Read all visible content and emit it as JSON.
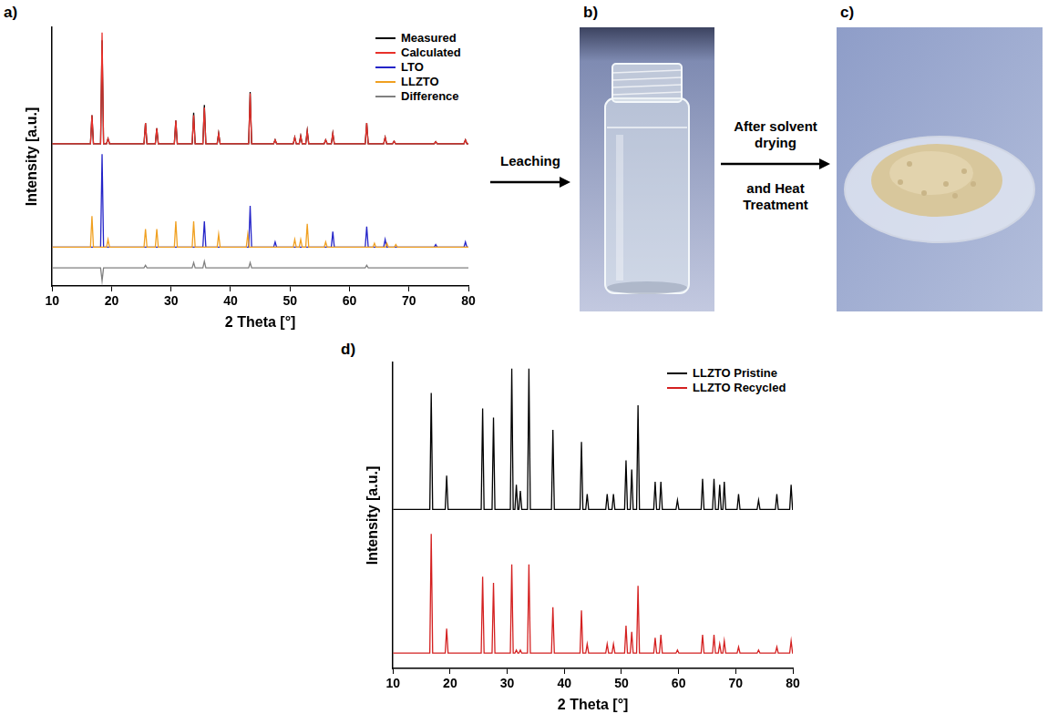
{
  "chart_data": [
    {
      "type": "line",
      "panel_label": "a)",
      "x_label": "2 Theta [°]",
      "y_label": "Intensity [a.u.]",
      "xlim": [
        10,
        80
      ],
      "xticks": [
        10,
        20,
        30,
        40,
        50,
        60,
        70,
        80
      ],
      "ylim": [
        0,
        100
      ],
      "tick_labels": "x",
      "grid": false,
      "legend": "upper right",
      "series": [
        {
          "name": "Measured",
          "color": "#000000",
          "x": [
            10,
            16.45,
            16.7,
            16.95,
            18.15,
            18.4,
            18.65,
            19.15,
            19.4,
            19.65,
            25.45,
            25.7,
            25.95,
            27.35,
            27.6,
            27.85,
            30.55,
            30.8,
            31.05,
            33.55,
            33.8,
            34.05,
            35.35,
            35.6,
            35.85,
            37.75,
            38.0,
            38.25,
            43.05,
            43.3,
            43.55,
            47.25,
            47.5,
            47.75,
            50.55,
            50.8,
            51.05,
            51.55,
            51.8,
            52.05,
            52.65,
            52.9,
            53.15,
            55.75,
            56.0,
            56.25,
            56.95,
            57.2,
            57.45,
            62.65,
            62.9,
            63.15,
            65.75,
            66.0,
            66.25,
            67.25,
            67.5,
            67.75,
            74.25,
            74.5,
            74.75,
            79.25,
            79.5,
            79.75,
            80
          ],
          "values": [
            55,
            55,
            66,
            55,
            55,
            95,
            55,
            55,
            57,
            55,
            55,
            63,
            55,
            55,
            61,
            55,
            55,
            64,
            55,
            55,
            67,
            55,
            55,
            70,
            55,
            55,
            59,
            55,
            55,
            75,
            55,
            55,
            56.5,
            55,
            55,
            57.5,
            55,
            55,
            58,
            55,
            55,
            60,
            55,
            55,
            56.5,
            55,
            55,
            59,
            55,
            55,
            63,
            55,
            55,
            57.5,
            55,
            55,
            56,
            55,
            55,
            55.8,
            55,
            55,
            56.5,
            55,
            55
          ]
        },
        {
          "name": "Calculated",
          "color": "#e8302a",
          "x": [
            10,
            16.45,
            16.7,
            16.95,
            18.15,
            18.4,
            18.65,
            19.15,
            19.4,
            19.65,
            25.45,
            25.7,
            25.95,
            27.35,
            27.6,
            27.85,
            30.55,
            30.8,
            31.05,
            33.55,
            33.8,
            34.05,
            35.35,
            35.6,
            35.85,
            37.75,
            38.0,
            38.25,
            43.05,
            43.3,
            43.55,
            47.25,
            47.5,
            47.75,
            50.55,
            50.8,
            51.05,
            51.55,
            51.8,
            52.05,
            52.65,
            52.9,
            53.15,
            55.75,
            56.0,
            56.25,
            56.95,
            57.2,
            57.45,
            62.65,
            62.9,
            63.15,
            65.75,
            66.0,
            66.25,
            67.25,
            67.5,
            67.75,
            74.25,
            74.5,
            74.75,
            79.25,
            79.5,
            79.75,
            80
          ],
          "values": [
            55,
            55,
            66,
            55,
            55,
            98,
            55,
            55,
            57,
            55,
            55,
            63,
            55,
            55,
            61,
            55,
            55,
            64,
            55,
            55,
            66,
            55,
            55,
            69,
            55,
            55,
            59,
            55,
            55,
            74.5,
            55,
            55,
            56.5,
            55,
            55,
            57.5,
            55,
            55,
            58,
            55,
            55,
            60,
            55,
            55,
            56.5,
            55,
            55,
            59,
            55,
            55,
            63,
            55,
            55,
            57.5,
            55,
            55,
            56,
            55,
            55,
            55.8,
            55,
            55,
            56.5,
            55,
            55
          ]
        },
        {
          "name": "LTO",
          "color": "#2424c8",
          "x": [
            10,
            18.15,
            18.4,
            18.65,
            35.35,
            35.6,
            35.85,
            43.05,
            43.3,
            43.55,
            47.25,
            47.5,
            47.75,
            56.95,
            57.2,
            57.45,
            62.65,
            62.9,
            63.15,
            65.75,
            66.0,
            66.25,
            74.25,
            74.5,
            74.75,
            79.25,
            79.5,
            79.75,
            80
          ],
          "values": [
            15,
            15,
            51,
            15,
            15,
            25,
            15,
            15,
            31,
            15,
            15,
            17,
            15,
            15,
            21,
            15,
            15,
            23,
            15,
            15,
            18,
            15,
            15,
            16,
            15,
            15,
            17,
            15,
            15
          ]
        },
        {
          "name": "LLZTO",
          "color": "#f0a020",
          "x": [
            10,
            16.45,
            16.7,
            16.95,
            19.15,
            19.4,
            19.65,
            25.45,
            25.7,
            25.95,
            27.35,
            27.6,
            27.85,
            30.55,
            30.8,
            31.05,
            33.55,
            33.8,
            34.05,
            37.75,
            38.0,
            38.25,
            42.65,
            42.9,
            43.15,
            50.55,
            50.8,
            51.05,
            51.55,
            51.8,
            52.05,
            52.65,
            52.9,
            53.15,
            55.75,
            56.0,
            56.25,
            63.95,
            64.2,
            64.45,
            66.05,
            66.3,
            66.55,
            67.55,
            67.8,
            68.05,
            80
          ],
          "values": [
            15,
            15,
            27,
            15,
            15,
            18,
            15,
            15,
            22,
            15,
            15,
            22,
            15,
            15,
            25,
            15,
            15,
            25,
            15,
            15,
            20,
            15,
            15,
            20,
            15,
            15,
            18,
            15,
            15,
            18,
            15,
            15,
            24,
            15,
            15,
            17,
            15,
            15,
            16.5,
            15,
            15,
            16.5,
            15,
            15,
            16,
            15,
            15
          ]
        },
        {
          "name": "Difference",
          "color": "#808080",
          "x": [
            10,
            18.15,
            18.4,
            18.65,
            25.45,
            25.7,
            25.95,
            33.55,
            33.8,
            34.05,
            35.35,
            35.6,
            35.85,
            43.05,
            43.3,
            43.55,
            62.65,
            62.9,
            63.15,
            80
          ],
          "values": [
            7,
            7,
            2,
            7,
            7,
            8,
            7,
            7,
            9,
            7,
            7,
            9.5,
            7,
            7,
            9,
            7,
            7,
            8,
            7,
            7
          ]
        }
      ]
    },
    {
      "type": "line",
      "panel_label": "d)",
      "x_label": "2 Theta [°]",
      "y_label": "Intensity [a.u.]",
      "xlim": [
        10,
        80
      ],
      "xticks": [
        10,
        20,
        30,
        40,
        50,
        60,
        70,
        80
      ],
      "ylim": [
        0,
        100
      ],
      "tick_labels": "x",
      "grid": false,
      "legend": "upper right",
      "series": [
        {
          "name": "LLZTO Pristine",
          "color": "#000000",
          "x": [
            10,
            16.45,
            16.7,
            16.95,
            19.15,
            19.4,
            19.65,
            25.45,
            25.7,
            25.95,
            27.35,
            27.6,
            27.85,
            30.55,
            30.8,
            31.05,
            31.35,
            31.6,
            31.85,
            32.05,
            32.3,
            32.55,
            33.55,
            33.8,
            34.05,
            37.75,
            38.0,
            38.25,
            42.75,
            43.0,
            43.25,
            43.75,
            44.0,
            44.25,
            47.25,
            47.5,
            47.75,
            48.35,
            48.6,
            48.85,
            50.55,
            50.8,
            51.05,
            51.55,
            51.8,
            52.05,
            52.65,
            52.9,
            53.15,
            55.65,
            55.9,
            56.15,
            56.65,
            56.9,
            57.15,
            59.55,
            59.8,
            60.05,
            63.95,
            64.2,
            64.45,
            65.95,
            66.2,
            66.45,
            66.95,
            67.2,
            67.45,
            67.75,
            68.0,
            68.25,
            70.25,
            70.5,
            70.75,
            73.75,
            74.0,
            74.25,
            76.95,
            77.2,
            77.45,
            79.45,
            79.7,
            79.95,
            80
          ],
          "values": [
            52,
            52,
            90,
            52,
            52,
            63,
            52,
            52,
            85,
            52,
            52,
            82,
            52,
            52,
            98,
            52,
            52,
            60,
            52,
            52,
            58,
            52,
            52,
            98,
            52,
            52,
            78,
            52,
            52,
            74,
            52,
            52,
            57,
            52,
            52,
            57,
            52,
            52,
            57,
            52,
            52,
            68,
            52,
            52,
            65,
            52,
            52,
            86,
            52,
            52,
            61,
            52,
            52,
            61,
            52,
            52,
            55,
            52,
            52,
            62,
            52,
            52,
            62,
            52,
            52,
            60,
            52,
            52,
            61,
            52,
            52,
            57,
            52,
            52,
            55,
            52,
            52,
            57,
            52,
            52,
            60,
            52,
            52
          ]
        },
        {
          "name": "LLZTO Recycled",
          "color": "#d42020",
          "x": [
            10,
            16.45,
            16.7,
            16.95,
            19.15,
            19.4,
            19.65,
            25.45,
            25.7,
            25.95,
            27.35,
            27.6,
            27.85,
            30.55,
            30.8,
            31.05,
            31.35,
            31.6,
            31.85,
            32.05,
            32.3,
            32.55,
            33.55,
            33.8,
            34.05,
            37.75,
            38.0,
            38.25,
            42.75,
            43.0,
            43.25,
            43.75,
            44.0,
            44.25,
            47.25,
            47.5,
            47.75,
            48.35,
            48.6,
            48.85,
            50.55,
            50.8,
            51.05,
            51.55,
            51.8,
            52.05,
            52.65,
            52.9,
            53.15,
            55.65,
            55.9,
            56.15,
            56.65,
            56.9,
            57.15,
            59.55,
            59.8,
            60.05,
            63.95,
            64.2,
            64.45,
            65.95,
            66.2,
            66.45,
            66.95,
            67.2,
            67.45,
            67.75,
            68.0,
            68.25,
            70.25,
            70.5,
            70.75,
            73.75,
            74.0,
            74.25,
            76.95,
            77.2,
            77.45,
            79.45,
            79.7,
            79.95,
            80
          ],
          "values": [
            5,
            5,
            44,
            5,
            5,
            13,
            5,
            5,
            30,
            5,
            5,
            28,
            5,
            5,
            34,
            5,
            5,
            6,
            5,
            5,
            6,
            5,
            5,
            34,
            5,
            5,
            20,
            5,
            5,
            19,
            5,
            5,
            8,
            5,
            5,
            8,
            5,
            5,
            8,
            5,
            5,
            14,
            5,
            5,
            12,
            5,
            5,
            27,
            5,
            5,
            10,
            5,
            5,
            11,
            5,
            5,
            6,
            5,
            5,
            11,
            5,
            5,
            11,
            5,
            5,
            8,
            5,
            5,
            9,
            5,
            5,
            7,
            5,
            5,
            6,
            5,
            5,
            7,
            5,
            5,
            9,
            5,
            5
          ]
        }
      ]
    }
  ],
  "process": {
    "steps": [
      {
        "arrow_text": [
          "Leaching"
        ],
        "panel_label": "b)"
      },
      {
        "arrow_text": [
          "After solvent drying",
          "and Heat Treatment"
        ],
        "panel_label": "c)"
      }
    ]
  }
}
